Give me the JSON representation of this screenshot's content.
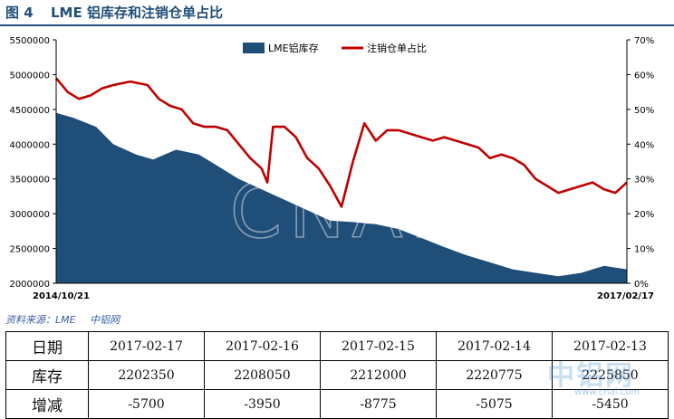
{
  "header": {
    "figure_label": "图 4",
    "title": "LME 铝库存和注销仓单占比"
  },
  "chart_data": {
    "type": "area",
    "x_start_label": "2014/10/21",
    "x_end_label": "2017/02/17",
    "y_left": {
      "ylim": [
        2000000,
        5500000
      ],
      "ticks": [
        "2000000",
        "2500000",
        "3000000",
        "3500000",
        "4000000",
        "4500000",
        "5000000",
        "5500000"
      ]
    },
    "y_right": {
      "ylim": [
        0,
        70
      ],
      "ticks": [
        "0%",
        "10%",
        "20%",
        "30%",
        "40%",
        "50%",
        "60%",
        "70%"
      ]
    },
    "grid": false,
    "legend": {
      "position": "top-center",
      "items": [
        {
          "label": "LME铝库存",
          "color": "#1f4e79"
        },
        {
          "label": "注销仓单占比",
          "color": "#c00000"
        }
      ]
    },
    "watermark": "CNAL",
    "series": [
      {
        "name": "LME铝库存",
        "type": "area",
        "axis": "left",
        "color": "#1f4e79",
        "x": [
          0,
          0.03,
          0.07,
          0.1,
          0.14,
          0.17,
          0.21,
          0.25,
          0.28,
          0.32,
          0.36,
          0.4,
          0.44,
          0.48,
          0.52,
          0.56,
          0.6,
          0.64,
          0.68,
          0.72,
          0.76,
          0.8,
          0.84,
          0.88,
          0.92,
          0.96,
          1.0
        ],
        "values": [
          4450000,
          4380000,
          4250000,
          4000000,
          3850000,
          3780000,
          3920000,
          3850000,
          3700000,
          3500000,
          3350000,
          3200000,
          3050000,
          2900000,
          2880000,
          2850000,
          2780000,
          2650000,
          2520000,
          2400000,
          2300000,
          2200000,
          2150000,
          2100000,
          2150000,
          2250000,
          2200000
        ]
      },
      {
        "name": "注销仓单占比",
        "type": "line",
        "axis": "right",
        "color": "#c00000",
        "x": [
          0,
          0.02,
          0.04,
          0.06,
          0.08,
          0.1,
          0.13,
          0.16,
          0.18,
          0.2,
          0.22,
          0.24,
          0.26,
          0.28,
          0.3,
          0.32,
          0.34,
          0.36,
          0.37,
          0.38,
          0.4,
          0.42,
          0.44,
          0.46,
          0.48,
          0.5,
          0.52,
          0.54,
          0.56,
          0.58,
          0.6,
          0.62,
          0.64,
          0.66,
          0.68,
          0.7,
          0.72,
          0.74,
          0.76,
          0.78,
          0.8,
          0.82,
          0.84,
          0.86,
          0.88,
          0.9,
          0.92,
          0.94,
          0.96,
          0.98,
          1.0
        ],
        "values": [
          59,
          55,
          53,
          54,
          56,
          57,
          58,
          57,
          53,
          51,
          50,
          46,
          45,
          45,
          44,
          40,
          36,
          33,
          29,
          45,
          45,
          42,
          36,
          33,
          28,
          22,
          35,
          46,
          41,
          44,
          44,
          43,
          42,
          41,
          42,
          41,
          40,
          39,
          36,
          37,
          36,
          34,
          30,
          28,
          26,
          27,
          28,
          29,
          27,
          26,
          29
        ]
      }
    ]
  },
  "source": {
    "label": "资料来源：LME",
    "name": "中铝网"
  },
  "stats_table": {
    "rows": [
      [
        "日期",
        "2017-02-17",
        "2017-02-16",
        "2017-02-15",
        "2017-02-14",
        "2017-02-13"
      ],
      [
        "库存",
        "2202350",
        "2208050",
        "2212000",
        "2220775",
        "2225850"
      ],
      [
        "增减",
        "-5700",
        "-3950",
        "-8775",
        "-5075",
        "-5450"
      ]
    ]
  },
  "watermark_logo": {
    "text": "中铝网",
    "url": "www.cnal.com"
  }
}
